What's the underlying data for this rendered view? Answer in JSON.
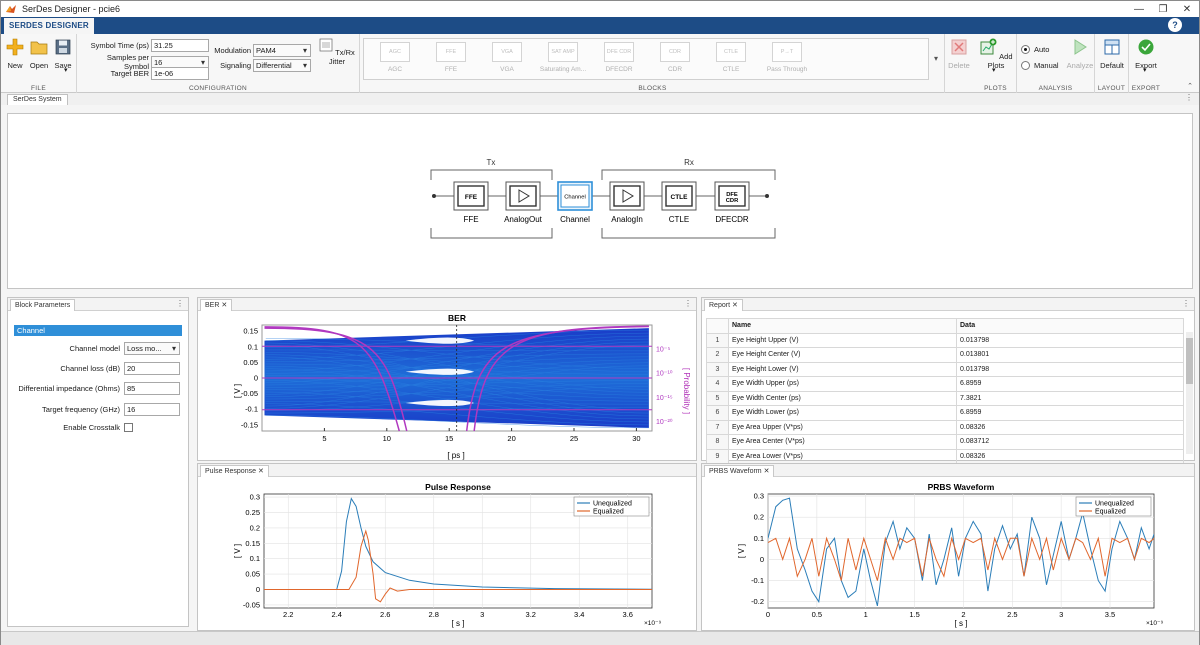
{
  "window": {
    "title": "SerDes Designer - pcie6",
    "controls": [
      "—",
      "❐",
      "✕"
    ]
  },
  "ribbon": {
    "tab": "SERDES DESIGNER",
    "help": "?",
    "file": {
      "new": "New",
      "open": "Open",
      "save": "Save",
      "label": "FILE"
    },
    "configuration": {
      "symbol_time_label": "Symbol Time (ps)",
      "symbol_time": "31.25",
      "samples_label": "Samples per Symbol",
      "samples": "16",
      "ber_label": "Target BER",
      "ber": "1e-06",
      "modulation_label": "Modulation",
      "modulation": "PAM4",
      "signaling_label": "Signaling",
      "signaling": "Differential",
      "jitter_label": "Tx/Rx Jitter",
      "label": "CONFIGURATION"
    },
    "blocks": {
      "items": [
        {
          "icon": "AGC",
          "label": "AGC"
        },
        {
          "icon": "FFE",
          "label": "FFE"
        },
        {
          "icon": "VGA",
          "label": "VGA"
        },
        {
          "icon": "SAT AMP",
          "label": "Saturating Am..."
        },
        {
          "icon": "DFE CDR",
          "label": "DFECDR"
        },
        {
          "icon": "CDR",
          "label": "CDR"
        },
        {
          "icon": "CTLE",
          "label": "CTLE"
        },
        {
          "icon": "P→T",
          "label": "Pass Through"
        }
      ],
      "delete": "Delete",
      "label": "BLOCKS"
    },
    "plots": {
      "add": "Add Plots",
      "label": "PLOTS"
    },
    "analysis": {
      "auto": "Auto",
      "manual": "Manual",
      "analyze": "Analyze",
      "label": "ANALYSIS"
    },
    "layout": {
      "default": "Default",
      "label": "LAYOUT"
    },
    "export": {
      "export": "Export",
      "label": "EXPORT"
    }
  },
  "system": {
    "tab": "SerDes System",
    "tx_label": "Tx",
    "rx_label": "Rx",
    "blocks": [
      {
        "icon": "FFE",
        "label": "FFE"
      },
      {
        "icon": "▷",
        "label": "AnalogOut"
      },
      {
        "icon": "Channel",
        "label": "Channel"
      },
      {
        "icon": "▷",
        "label": "AnalogIn"
      },
      {
        "icon": "CTLE",
        "label": "CTLE"
      },
      {
        "icon": "DFE CDR",
        "label": "DFECDR"
      }
    ]
  },
  "block_parameters": {
    "tab": "Block Parameters",
    "header": "Channel",
    "channel_model_label": "Channel model",
    "channel_model": "Loss mo...",
    "loss_label": "Channel loss (dB)",
    "loss": "20",
    "impedance_label": "Differential impedance (Ohms)",
    "impedance": "85",
    "freq_label": "Target frequency (GHz)",
    "freq": "16",
    "crosstalk_label": "Enable Crosstalk"
  },
  "report": {
    "tab": "Report",
    "columns": [
      "Name",
      "Data"
    ],
    "rows": [
      [
        "1",
        "Eye Height Upper (V)",
        "0.013798"
      ],
      [
        "2",
        "Eye Height Center (V)",
        "0.013801"
      ],
      [
        "3",
        "Eye Height Lower (V)",
        "0.013798"
      ],
      [
        "4",
        "Eye Width Upper (ps)",
        "6.8959"
      ],
      [
        "5",
        "Eye Width Center (ps)",
        "7.3821"
      ],
      [
        "6",
        "Eye Width Lower (ps)",
        "6.8959"
      ],
      [
        "7",
        "Eye Area Upper (V*ps)",
        "0.08326"
      ],
      [
        "8",
        "Eye Area Center (V*ps)",
        "0.083712"
      ],
      [
        "9",
        "Eye Area Lower (V*ps)",
        "0.08326"
      ]
    ]
  },
  "chart_data": [
    {
      "type": "heatmap",
      "tab": "BER",
      "title": "BER",
      "xlabel": "[ ps ]",
      "ylabel": "[ V ]",
      "y2label": "[ Probability ]",
      "xlim": [
        0,
        31.25
      ],
      "ylim": [
        -0.17,
        0.17
      ],
      "xticks": [
        "5",
        "10",
        "15",
        "20",
        "25",
        "30"
      ],
      "yticks": [
        "0.15",
        "0.1",
        "0.05",
        "0",
        "-0.05",
        "-0.1",
        "-0.15"
      ],
      "y2ticks": [
        "10⁻⁵",
        "10⁻¹⁰",
        "10⁻¹⁵",
        "10⁻²⁰"
      ],
      "y2range": [
        0,
        -22
      ]
    },
    {
      "type": "line",
      "tab": "Pulse Response",
      "title": "Pulse Response",
      "xlabel": "[ s ]",
      "ylabel": "[ V ]",
      "xexp": "×10⁻⁹",
      "xlim": [
        2.1,
        3.7
      ],
      "ylim": [
        -0.06,
        0.31
      ],
      "xticks": [
        2.2,
        2.4,
        2.6,
        2.8,
        3.0,
        3.2,
        3.4,
        3.6
      ],
      "xticklabels": [
        "2.2",
        "2.4",
        "2.6",
        "2.8",
        "3",
        "3.2",
        "3.4",
        "3.6"
      ],
      "yticks": [
        0.3,
        0.25,
        0.2,
        0.15,
        0.1,
        0.05,
        0,
        -0.05
      ],
      "yticklabels": [
        "0.3",
        "0.25",
        "0.2",
        "0.15",
        "0.1",
        "0.05",
        "0",
        "-0.05"
      ],
      "series": [
        {
          "name": "Unequalized",
          "color": "#2a7db8",
          "x": [
            2.1,
            2.4,
            2.42,
            2.44,
            2.46,
            2.48,
            2.5,
            2.52,
            2.55,
            2.6,
            2.7,
            2.8,
            3.0,
            3.3,
            3.7
          ],
          "y": [
            0,
            0,
            0.06,
            0.22,
            0.295,
            0.27,
            0.2,
            0.14,
            0.09,
            0.055,
            0.03,
            0.018,
            0.008,
            0.003,
            0.001
          ]
        },
        {
          "name": "Equalized",
          "color": "#e0662c",
          "x": [
            2.1,
            2.45,
            2.48,
            2.5,
            2.52,
            2.53,
            2.55,
            2.56,
            2.58,
            2.6,
            2.62,
            2.65,
            2.7,
            3.7
          ],
          "y": [
            0,
            0,
            0.04,
            0.14,
            0.19,
            0.16,
            0.05,
            -0.03,
            -0.04,
            -0.015,
            0.005,
            -0.005,
            0.0,
            0.0
          ]
        }
      ]
    },
    {
      "type": "line",
      "tab": "PRBS Waveform",
      "title": "PRBS Waveform",
      "xlabel": "[ s ]",
      "ylabel": "[ V ]",
      "xexp": "×10⁻⁹",
      "xlim": [
        0,
        3.95
      ],
      "ylim": [
        -0.23,
        0.31
      ],
      "xticks": [
        0,
        0.5,
        1,
        1.5,
        2,
        2.5,
        3,
        3.5
      ],
      "xticklabels": [
        "0",
        "0.5",
        "1",
        "1.5",
        "2",
        "2.5",
        "3",
        "3.5"
      ],
      "yticks": [
        0.3,
        0.2,
        0.1,
        0,
        -0.1,
        -0.2
      ],
      "yticklabels": [
        "0.3",
        "0.2",
        "0.1",
        "0",
        "-0.1",
        "-0.2"
      ],
      "series": [
        {
          "name": "Unequalized",
          "color": "#2a7db8",
          "x": [
            0,
            0.08,
            0.15,
            0.22,
            0.3,
            0.38,
            0.45,
            0.52,
            0.6,
            0.68,
            0.75,
            0.82,
            0.9,
            0.98,
            1.05,
            1.12,
            1.2,
            1.28,
            1.35,
            1.42,
            1.5,
            1.58,
            1.65,
            1.72,
            1.8,
            1.88,
            1.95,
            2.02,
            2.1,
            2.18,
            2.25,
            2.32,
            2.4,
            2.48,
            2.55,
            2.62,
            2.7,
            2.78,
            2.85,
            2.92,
            3.0,
            3.08,
            3.15,
            3.22,
            3.3,
            3.38,
            3.45,
            3.52,
            3.6,
            3.68,
            3.75,
            3.82,
            3.9,
            3.95
          ],
          "y": [
            0.1,
            0.25,
            0.28,
            0.29,
            0.05,
            -0.05,
            -0.15,
            -0.2,
            0.05,
            0.1,
            -0.1,
            -0.18,
            -0.15,
            0.05,
            -0.1,
            -0.22,
            0.08,
            0.18,
            0.05,
            0.15,
            0.1,
            -0.1,
            0.12,
            -0.12,
            0.0,
            0.15,
            -0.08,
            0.1,
            0.18,
            0.12,
            -0.15,
            0.05,
            0.16,
            0.05,
            0.12,
            -0.08,
            0.2,
            0.1,
            -0.12,
            0.02,
            0.18,
            0.0,
            0.1,
            0.22,
            0.05,
            -0.1,
            -0.15,
            0.05,
            0.18,
            0.1,
            0.0,
            0.15,
            0.05,
            0.12
          ]
        },
        {
          "name": "Equalized",
          "color": "#e0662c",
          "x": [
            0,
            0.08,
            0.15,
            0.22,
            0.3,
            0.38,
            0.45,
            0.52,
            0.6,
            0.68,
            0.75,
            0.82,
            0.9,
            0.98,
            1.05,
            1.12,
            1.2,
            1.28,
            1.35,
            1.42,
            1.5,
            1.58,
            1.65,
            1.72,
            1.8,
            1.88,
            1.95,
            2.02,
            2.1,
            2.18,
            2.25,
            2.32,
            2.4,
            2.48,
            2.55,
            2.62,
            2.7,
            2.78,
            2.85,
            2.92,
            3.0,
            3.08,
            3.15,
            3.22,
            3.3,
            3.38,
            3.45,
            3.52,
            3.6,
            3.68,
            3.75,
            3.82,
            3.9,
            3.95
          ],
          "y": [
            0.08,
            0.1,
            0.0,
            0.1,
            -0.08,
            0.0,
            0.1,
            -0.08,
            0.1,
            0.0,
            -0.1,
            0.1,
            -0.05,
            0.1,
            0.0,
            -0.1,
            0.1,
            0.0,
            0.1,
            0.08,
            0.1,
            -0.08,
            0.1,
            0.0,
            -0.08,
            0.1,
            0.0,
            0.1,
            0.08,
            0.1,
            -0.05,
            0.1,
            0.0,
            0.1,
            0.1,
            -0.08,
            0.1,
            0.0,
            0.1,
            -0.05,
            0.1,
            0.0,
            0.1,
            0.08,
            0.0,
            0.1,
            -0.08,
            0.1,
            0.08,
            0.1,
            0.0,
            0.1,
            0.08,
            0.1
          ]
        }
      ]
    }
  ]
}
